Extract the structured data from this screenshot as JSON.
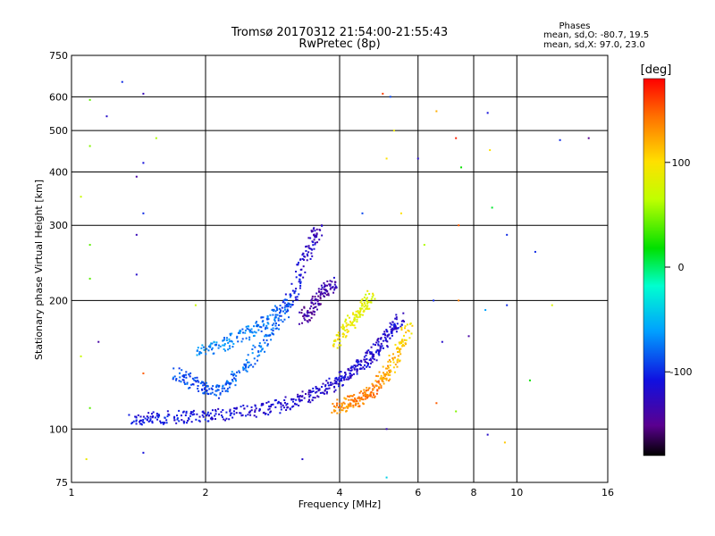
{
  "chart_data": {
    "type": "scatter",
    "title": "Tromsø 20170312 21:54:00-21:55:43",
    "subtitle": "RwPretec (8p)",
    "xlabel": "Frequency [MHz]",
    "ylabel": "Stationary phase Virtual Height [km]",
    "x_scale": "log",
    "y_scale": "log",
    "xlim": [
      1,
      16
    ],
    "ylim": [
      75,
      750
    ],
    "x_ticks": [
      1,
      2,
      4,
      6,
      8,
      10,
      16
    ],
    "x_tick_labels": [
      "1",
      "2",
      "4",
      "6",
      "8",
      "10",
      "16"
    ],
    "y_ticks": [
      75,
      100,
      200,
      300,
      400,
      500,
      600,
      750
    ],
    "y_tick_labels": [
      "75",
      "100",
      "200",
      "300",
      "400",
      "500",
      "600",
      "750"
    ],
    "grid_x": [
      2,
      4,
      6,
      8,
      10
    ],
    "grid_y": [
      100,
      200,
      300,
      400,
      500,
      600
    ],
    "grid": true,
    "stats_title": "Phases",
    "stats_lines": [
      "mean, sd,O: -80.7, 19.5",
      "mean, sd,X: 97.0, 23.0"
    ],
    "colorbar": {
      "label": "[deg]",
      "min": -180,
      "max": 180,
      "ticks": [
        100,
        0,
        -100
      ],
      "tick_labels": [
        "100",
        "0",
        "-100"
      ]
    },
    "traces": [
      {
        "x": [
          1.36,
          1.55,
          1.8,
          2.1,
          2.5,
          2.9,
          3.3,
          3.7,
          4.0,
          4.3,
          4.6,
          4.9,
          5.2,
          5.5
        ],
        "y": [
          105,
          106,
          107,
          108,
          110,
          113,
          118,
          124,
          130,
          137,
          145,
          155,
          168,
          182
        ],
        "phase": [
          -110,
          -108,
          -110,
          -112,
          -115,
          -118,
          -120,
          -120,
          -115,
          -115,
          -118,
          -118,
          -120,
          -115
        ]
      },
      {
        "x": [
          1.7,
          1.9,
          2.1,
          2.3,
          2.6,
          2.9,
          3.2,
          3.4,
          3.6
        ],
        "y": [
          135,
          128,
          122,
          130,
          150,
          175,
          215,
          265,
          295
        ],
        "phase": [
          -85,
          -90,
          -88,
          -80,
          -75,
          -82,
          -110,
          -125,
          -130
        ]
      },
      {
        "x": [
          1.9,
          2.2,
          2.5,
          2.8,
          3.1
        ],
        "y": [
          150,
          158,
          168,
          182,
          200
        ],
        "phase": [
          -65,
          -70,
          -72,
          -78,
          -85
        ]
      },
      {
        "x": [
          3.3,
          3.5,
          3.7,
          3.9
        ],
        "y": [
          180,
          195,
          210,
          220
        ],
        "phase": [
          -140,
          -145,
          -140,
          -130
        ]
      },
      {
        "x": [
          3.9,
          4.2,
          4.5,
          4.8,
          5.1,
          5.4,
          5.7
        ],
        "y": [
          112,
          115,
          118,
          125,
          135,
          150,
          175
        ],
        "phase": [
          130,
          135,
          140,
          140,
          125,
          110,
          100
        ]
      },
      {
        "x": [
          3.9,
          4.2,
          4.5,
          4.7
        ],
        "y": [
          160,
          175,
          190,
          205
        ],
        "phase": [
          95,
          90,
          85,
          80
        ]
      }
    ],
    "scattered_points": [
      {
        "x": 1.1,
        "y": 590,
        "phase": 40
      },
      {
        "x": 1.2,
        "y": 540,
        "phase": -120
      },
      {
        "x": 1.3,
        "y": 650,
        "phase": -100
      },
      {
        "x": 1.45,
        "y": 610,
        "phase": -130
      },
      {
        "x": 1.1,
        "y": 460,
        "phase": 50
      },
      {
        "x": 1.45,
        "y": 420,
        "phase": -110
      },
      {
        "x": 1.4,
        "y": 390,
        "phase": -140
      },
      {
        "x": 1.55,
        "y": 480,
        "phase": 60
      },
      {
        "x": 1.05,
        "y": 350,
        "phase": 70
      },
      {
        "x": 1.1,
        "y": 270,
        "phase": 40
      },
      {
        "x": 1.45,
        "y": 320,
        "phase": -100
      },
      {
        "x": 1.4,
        "y": 285,
        "phase": -130
      },
      {
        "x": 1.4,
        "y": 230,
        "phase": -120
      },
      {
        "x": 1.1,
        "y": 225,
        "phase": 40
      },
      {
        "x": 1.15,
        "y": 160,
        "phase": -140
      },
      {
        "x": 1.05,
        "y": 148,
        "phase": 70
      },
      {
        "x": 1.1,
        "y": 112,
        "phase": 40
      },
      {
        "x": 1.08,
        "y": 85,
        "phase": 90
      },
      {
        "x": 1.45,
        "y": 88,
        "phase": -110
      },
      {
        "x": 1.9,
        "y": 195,
        "phase": 70
      },
      {
        "x": 1.45,
        "y": 135,
        "phase": 150
      },
      {
        "x": 5.0,
        "y": 610,
        "phase": 160
      },
      {
        "x": 5.2,
        "y": 600,
        "phase": -90
      },
      {
        "x": 5.3,
        "y": 500,
        "phase": 90
      },
      {
        "x": 5.1,
        "y": 430,
        "phase": 100
      },
      {
        "x": 6.0,
        "y": 430,
        "phase": -120
      },
      {
        "x": 6.6,
        "y": 555,
        "phase": 120
      },
      {
        "x": 7.3,
        "y": 480,
        "phase": 170
      },
      {
        "x": 7.5,
        "y": 410,
        "phase": 20
      },
      {
        "x": 8.6,
        "y": 550,
        "phase": -110
      },
      {
        "x": 8.7,
        "y": 450,
        "phase": 100
      },
      {
        "x": 12.5,
        "y": 475,
        "phase": -100
      },
      {
        "x": 14.5,
        "y": 480,
        "phase": -150
      },
      {
        "x": 4.5,
        "y": 320,
        "phase": -90
      },
      {
        "x": 5.5,
        "y": 320,
        "phase": 100
      },
      {
        "x": 6.2,
        "y": 270,
        "phase": 60
      },
      {
        "x": 7.4,
        "y": 300,
        "phase": 150
      },
      {
        "x": 8.8,
        "y": 330,
        "phase": 10
      },
      {
        "x": 9.5,
        "y": 285,
        "phase": -100
      },
      {
        "x": 11.0,
        "y": 260,
        "phase": -100
      },
      {
        "x": 6.5,
        "y": 200,
        "phase": -100
      },
      {
        "x": 7.4,
        "y": 200,
        "phase": 140
      },
      {
        "x": 8.5,
        "y": 190,
        "phase": -60
      },
      {
        "x": 9.5,
        "y": 195,
        "phase": -100
      },
      {
        "x": 12.0,
        "y": 195,
        "phase": 80
      },
      {
        "x": 6.8,
        "y": 160,
        "phase": -120
      },
      {
        "x": 7.8,
        "y": 165,
        "phase": -140
      },
      {
        "x": 6.6,
        "y": 115,
        "phase": 150
      },
      {
        "x": 7.3,
        "y": 110,
        "phase": 50
      },
      {
        "x": 10.7,
        "y": 130,
        "phase": 20
      },
      {
        "x": 8.6,
        "y": 97,
        "phase": -120
      },
      {
        "x": 9.4,
        "y": 93,
        "phase": 110
      },
      {
        "x": 5.1,
        "y": 77,
        "phase": -40
      },
      {
        "x": 5.1,
        "y": 100,
        "phase": -130
      },
      {
        "x": 3.3,
        "y": 85,
        "phase": -120
      }
    ]
  }
}
